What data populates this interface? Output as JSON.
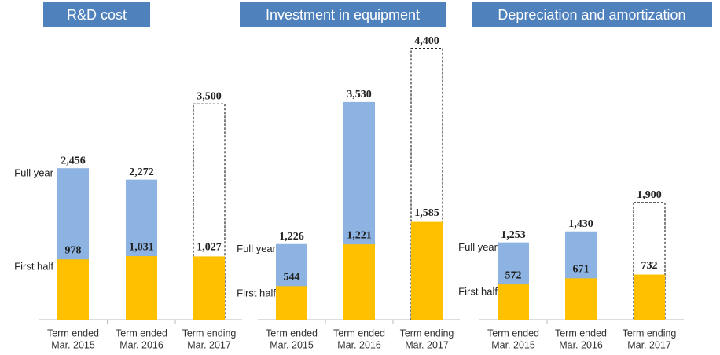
{
  "chart_data": [
    {
      "type": "bar",
      "title": "R&D cost",
      "categories": [
        [
          "Term ended",
          "Mar. 2015"
        ],
        [
          "Term ended",
          "Mar. 2016"
        ],
        [
          "Term ending",
          "Mar. 2017"
        ]
      ],
      "series": [
        {
          "name": "Full year",
          "color": "#8db3e2",
          "values": [
            2456,
            2272,
            3500
          ],
          "value_labels": [
            "2,456",
            "2,272",
            "3,500"
          ],
          "dashed": [
            false,
            false,
            true
          ]
        },
        {
          "name": "First half",
          "color": "#ffc000",
          "values": [
            978,
            1031,
            1027
          ],
          "value_labels": [
            "978",
            "1,031",
            "1,027"
          ]
        }
      ]
    },
    {
      "type": "bar",
      "title": "Investment in equipment",
      "categories": [
        [
          "Term ended",
          "Mar. 2015"
        ],
        [
          "Term ended",
          "Mar. 2016"
        ],
        [
          "Term ending",
          "Mar. 2017"
        ]
      ],
      "series": [
        {
          "name": "Full year",
          "color": "#8db3e2",
          "values": [
            1226,
            3530,
            4400
          ],
          "value_labels": [
            "1,226",
            "3,530",
            "4,400"
          ],
          "dashed": [
            false,
            false,
            true
          ]
        },
        {
          "name": "First half",
          "color": "#ffc000",
          "values": [
            544,
            1221,
            1585
          ],
          "value_labels": [
            "544",
            "1,221",
            "1,585"
          ]
        }
      ]
    },
    {
      "type": "bar",
      "title": "Depreciation and amortization",
      "categories": [
        [
          "Term ended",
          "Mar. 2015"
        ],
        [
          "Term ended",
          "Mar. 2016"
        ],
        [
          "Term ending",
          "Mar. 2017"
        ]
      ],
      "series": [
        {
          "name": "Full year",
          "color": "#8db3e2",
          "values": [
            1253,
            1430,
            1900
          ],
          "value_labels": [
            "1,253",
            "1,430",
            "1,900"
          ],
          "dashed": [
            false,
            false,
            true
          ]
        },
        {
          "name": "First half",
          "color": "#ffc000",
          "values": [
            572,
            671,
            732
          ],
          "value_labels": [
            "572",
            "671",
            "732"
          ]
        }
      ]
    }
  ]
}
